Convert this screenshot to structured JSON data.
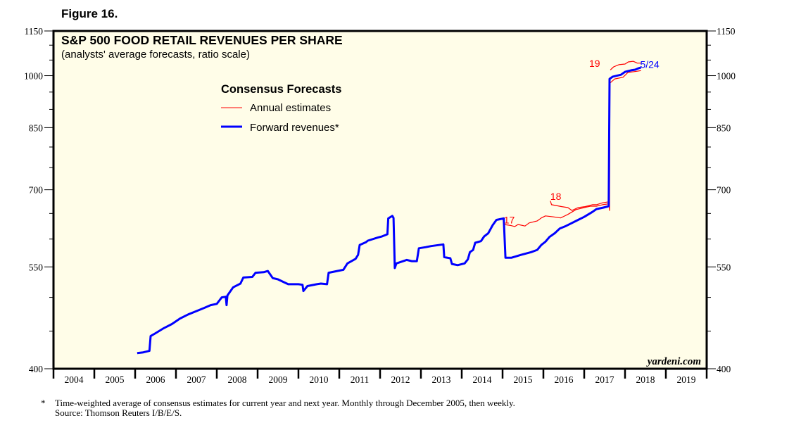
{
  "figure_label": "Figure 16.",
  "watermark": "yardeni.com",
  "footnote": {
    "marker": "*",
    "line1": "Time-weighted average of consensus estimates for current year and next year. Monthly through December 2005, then weekly.",
    "line2": "Source: Thomson Reuters I/B/E/S."
  },
  "chart_data": {
    "type": "line",
    "title": "S&P 500 FOOD RETAIL REVENUES PER SHARE",
    "subtitle": "(analysts' average forecasts, ratio scale)",
    "xlabel": "",
    "ylabel": "",
    "yscale": "log",
    "ylim": [
      400,
      1150
    ],
    "xlim": [
      2004,
      2020
    ],
    "y_ticks": [
      400,
      550,
      700,
      850,
      1000,
      1150
    ],
    "y_tick_labels": [
      "400",
      "550",
      "700",
      "850",
      "1000",
      "1150"
    ],
    "y_minor_ticks": [
      450,
      500,
      600,
      650,
      750,
      800,
      900,
      950,
      1050,
      1100
    ],
    "x_tick_labels": [
      "2004",
      "2005",
      "2006",
      "2007",
      "2008",
      "2009",
      "2010",
      "2011",
      "2012",
      "2013",
      "2014",
      "2015",
      "2016",
      "2017",
      "2018",
      "2019"
    ],
    "grid": false,
    "background": "#fffde8",
    "legend": {
      "title": "Consensus Forecasts",
      "placement": "top-center",
      "entries": [
        {
          "label": "Annual estimates",
          "color": "#ff0000"
        },
        {
          "label": "Forward revenues*",
          "color": "#0000ff"
        }
      ]
    },
    "annotations": [
      {
        "text": "17",
        "x": 2015.03,
        "y": 630,
        "color": "#ff0000"
      },
      {
        "text": "18",
        "x": 2016.17,
        "y": 678,
        "color": "#ff0000"
      },
      {
        "text": "19",
        "x": 2017.12,
        "y": 1028,
        "color": "#ff0000"
      },
      {
        "text": "5/24",
        "x": 2018.37,
        "y": 1024,
        "color": "#0000ff"
      }
    ],
    "series": [
      {
        "name": "Forward revenues*",
        "color": "#0000ff",
        "points": [
          [
            2006.05,
            420
          ],
          [
            2006.2,
            421
          ],
          [
            2006.35,
            423
          ],
          [
            2006.38,
            443
          ],
          [
            2006.5,
            447
          ],
          [
            2006.7,
            454
          ],
          [
            2006.9,
            460
          ],
          [
            2007.1,
            468
          ],
          [
            2007.3,
            474
          ],
          [
            2007.5,
            479
          ],
          [
            2007.7,
            484
          ],
          [
            2007.85,
            488
          ],
          [
            2008.0,
            490
          ],
          [
            2008.12,
            500
          ],
          [
            2008.22,
            501
          ],
          [
            2008.24,
            488
          ],
          [
            2008.26,
            503
          ],
          [
            2008.4,
            516
          ],
          [
            2008.58,
            522
          ],
          [
            2008.65,
            532
          ],
          [
            2008.87,
            533
          ],
          [
            2008.95,
            540
          ],
          [
            2009.15,
            541
          ],
          [
            2009.25,
            543
          ],
          [
            2009.37,
            531
          ],
          [
            2009.5,
            529
          ],
          [
            2009.62,
            525
          ],
          [
            2009.75,
            521
          ],
          [
            2010.0,
            521
          ],
          [
            2010.1,
            520
          ],
          [
            2010.12,
            510
          ],
          [
            2010.22,
            518
          ],
          [
            2010.45,
            521
          ],
          [
            2010.55,
            522
          ],
          [
            2010.7,
            521
          ],
          [
            2010.74,
            540
          ],
          [
            2010.95,
            543
          ],
          [
            2011.1,
            545
          ],
          [
            2011.2,
            556
          ],
          [
            2011.4,
            564
          ],
          [
            2011.46,
            571
          ],
          [
            2011.5,
            589
          ],
          [
            2011.65,
            594
          ],
          [
            2011.7,
            597
          ],
          [
            2011.95,
            603
          ],
          [
            2012.05,
            605
          ],
          [
            2012.18,
            609
          ],
          [
            2012.2,
            640
          ],
          [
            2012.3,
            645
          ],
          [
            2012.33,
            641
          ],
          [
            2012.36,
            548
          ],
          [
            2012.4,
            556
          ],
          [
            2012.65,
            562
          ],
          [
            2012.78,
            560
          ],
          [
            2012.9,
            560
          ],
          [
            2012.95,
            583
          ],
          [
            2013.12,
            585
          ],
          [
            2013.25,
            587
          ],
          [
            2013.55,
            590
          ],
          [
            2013.57,
            567
          ],
          [
            2013.72,
            565
          ],
          [
            2013.76,
            555
          ],
          [
            2013.9,
            553
          ],
          [
            2014.07,
            556
          ],
          [
            2014.15,
            563
          ],
          [
            2014.2,
            576
          ],
          [
            2014.28,
            580
          ],
          [
            2014.33,
            593
          ],
          [
            2014.47,
            596
          ],
          [
            2014.55,
            605
          ],
          [
            2014.65,
            611
          ],
          [
            2014.76,
            627
          ],
          [
            2014.85,
            637
          ],
          [
            2015.03,
            640
          ],
          [
            2015.07,
            566
          ],
          [
            2015.22,
            566
          ],
          [
            2015.45,
            571
          ],
          [
            2015.7,
            576
          ],
          [
            2015.85,
            580
          ],
          [
            2015.95,
            589
          ],
          [
            2016.05,
            595
          ],
          [
            2016.15,
            604
          ],
          [
            2016.28,
            611
          ],
          [
            2016.4,
            620
          ],
          [
            2016.55,
            625
          ],
          [
            2016.65,
            629
          ],
          [
            2016.85,
            637
          ],
          [
            2017.0,
            643
          ],
          [
            2017.2,
            653
          ],
          [
            2017.3,
            659
          ],
          [
            2017.47,
            662
          ],
          [
            2017.6,
            665
          ],
          [
            2017.62,
            990
          ],
          [
            2017.7,
            997
          ],
          [
            2017.9,
            1003
          ],
          [
            2018.0,
            1012
          ],
          [
            2018.15,
            1017
          ],
          [
            2018.25,
            1019
          ],
          [
            2018.32,
            1023
          ],
          [
            2018.39,
            1026
          ]
        ]
      },
      {
        "name": "Annual estimates 2017",
        "color": "#ff0000",
        "points": [
          [
            2015.03,
            628
          ],
          [
            2015.2,
            626
          ],
          [
            2015.3,
            624
          ],
          [
            2015.38,
            628
          ],
          [
            2015.55,
            625
          ],
          [
            2015.65,
            631
          ],
          [
            2015.85,
            635
          ],
          [
            2015.95,
            641
          ],
          [
            2016.05,
            645
          ],
          [
            2016.25,
            643
          ],
          [
            2016.42,
            641
          ],
          [
            2016.5,
            644
          ],
          [
            2016.6,
            648
          ],
          [
            2016.8,
            658
          ],
          [
            2017.0,
            662
          ],
          [
            2017.15,
            665
          ],
          [
            2017.3,
            665
          ],
          [
            2017.45,
            668
          ],
          [
            2017.6,
            670
          ]
        ]
      },
      {
        "name": "Annual estimates 2018",
        "color": "#ff0000",
        "points": [
          [
            2016.17,
            676
          ],
          [
            2016.2,
            668
          ],
          [
            2016.45,
            664
          ],
          [
            2016.6,
            662
          ],
          [
            2016.7,
            656
          ],
          [
            2016.85,
            662
          ],
          [
            2017.02,
            664
          ],
          [
            2017.2,
            668
          ],
          [
            2017.3,
            668
          ],
          [
            2017.45,
            672
          ],
          [
            2017.6,
            674
          ],
          [
            2017.62,
            656
          ],
          [
            2017.63,
            977
          ],
          [
            2017.75,
            990
          ],
          [
            2017.95,
            995
          ],
          [
            2018.07,
            1010
          ],
          [
            2018.3,
            1014
          ],
          [
            2018.39,
            1016
          ]
        ]
      },
      {
        "name": "Annual estimates 2019",
        "color": "#ff0000",
        "points": [
          [
            2017.64,
            1018
          ],
          [
            2017.72,
            1028
          ],
          [
            2017.85,
            1035
          ],
          [
            2018.0,
            1037
          ],
          [
            2018.08,
            1044
          ],
          [
            2018.2,
            1046
          ],
          [
            2018.3,
            1040
          ],
          [
            2018.39,
            1040
          ]
        ]
      }
    ]
  }
}
